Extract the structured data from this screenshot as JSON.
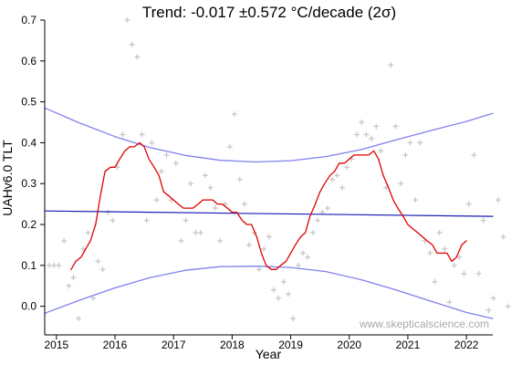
{
  "chart_data": {
    "type": "line",
    "title": "Trend: -0.017 ±0.572 °C/decade (2σ)",
    "xlabel": "Year",
    "ylabel": "UAHv6.0 TLT",
    "xlim": [
      2014.8,
      2022.45
    ],
    "ylim": [
      -0.07,
      0.7
    ],
    "xticks": [
      2015,
      2016,
      2017,
      2018,
      2019,
      2020,
      2021,
      2022
    ],
    "yticks": [
      0.0,
      0.1,
      0.2,
      0.3,
      0.4,
      0.5,
      0.6,
      0.7
    ],
    "ytick_labels": [
      "0.0",
      "0.1",
      "0.2",
      "0.3",
      "0.4",
      "0.5",
      "0.6",
      "0.7"
    ],
    "watermark": "www.skepticalscience.com",
    "colors": {
      "monthly": "#c8c8c8",
      "smoothed": "#e00000",
      "trend": "#1a1ab8",
      "confidence": "#8080ee",
      "axis": "#000000"
    },
    "series": [
      {
        "kind": "scatter",
        "marker": "plus",
        "points": [
          [
            2014.88,
            0.1
          ],
          [
            2014.96,
            0.1
          ],
          [
            2015.04,
            0.1
          ],
          [
            2015.13,
            0.16
          ],
          [
            2015.21,
            0.05
          ],
          [
            2015.29,
            0.07
          ],
          [
            2015.38,
            -0.03
          ],
          [
            2015.46,
            0.14
          ],
          [
            2015.54,
            0.18
          ],
          [
            2015.63,
            0.02
          ],
          [
            2015.71,
            0.11
          ],
          [
            2015.79,
            0.09
          ],
          [
            2015.88,
            0.23
          ],
          [
            2015.96,
            0.21
          ],
          [
            2016.04,
            0.34
          ],
          [
            2016.13,
            0.42
          ],
          [
            2016.21,
            0.7
          ],
          [
            2016.29,
            0.64
          ],
          [
            2016.38,
            0.61
          ],
          [
            2016.46,
            0.42
          ],
          [
            2016.54,
            0.21
          ],
          [
            2016.63,
            0.4
          ],
          [
            2016.71,
            0.26
          ],
          [
            2016.79,
            0.33
          ],
          [
            2016.88,
            0.37
          ],
          [
            2016.96,
            0.26
          ],
          [
            2017.04,
            0.35
          ],
          [
            2017.13,
            0.16
          ],
          [
            2017.21,
            0.21
          ],
          [
            2017.29,
            0.3
          ],
          [
            2017.38,
            0.18
          ],
          [
            2017.46,
            0.18
          ],
          [
            2017.54,
            0.32
          ],
          [
            2017.63,
            0.29
          ],
          [
            2017.71,
            0.24
          ],
          [
            2017.79,
            0.16
          ],
          [
            2017.88,
            0.25
          ],
          [
            2017.96,
            0.39
          ],
          [
            2018.04,
            0.47
          ],
          [
            2018.13,
            0.31
          ],
          [
            2018.21,
            0.25
          ],
          [
            2018.29,
            0.15
          ],
          [
            2018.38,
            0.18
          ],
          [
            2018.46,
            0.09
          ],
          [
            2018.54,
            0.14
          ],
          [
            2018.63,
            0.17
          ],
          [
            2018.71,
            0.04
          ],
          [
            2018.79,
            0.02
          ],
          [
            2018.88,
            0.06
          ],
          [
            2018.96,
            0.03
          ],
          [
            2019.04,
            -0.03
          ],
          [
            2019.13,
            0.1
          ],
          [
            2019.21,
            0.13
          ],
          [
            2019.29,
            0.12
          ],
          [
            2019.38,
            0.18
          ],
          [
            2019.46,
            0.21
          ],
          [
            2019.54,
            0.23
          ],
          [
            2019.63,
            0.24
          ],
          [
            2019.71,
            0.31
          ],
          [
            2019.79,
            0.32
          ],
          [
            2019.88,
            0.29
          ],
          [
            2019.96,
            0.34
          ],
          [
            2020.04,
            0.36
          ],
          [
            2020.13,
            0.42
          ],
          [
            2020.21,
            0.45
          ],
          [
            2020.29,
            0.42
          ],
          [
            2020.38,
            0.41
          ],
          [
            2020.46,
            0.44
          ],
          [
            2020.54,
            0.38
          ],
          [
            2020.63,
            0.29
          ],
          [
            2020.71,
            0.59
          ],
          [
            2020.79,
            0.44
          ],
          [
            2020.88,
            0.3
          ],
          [
            2020.96,
            0.37
          ],
          [
            2021.04,
            0.4
          ],
          [
            2021.13,
            0.26
          ],
          [
            2021.21,
            0.4
          ],
          [
            2021.29,
            0.16
          ],
          [
            2021.38,
            0.13
          ],
          [
            2021.46,
            0.06
          ],
          [
            2021.54,
            0.18
          ],
          [
            2021.63,
            0.14
          ],
          [
            2021.71,
            0.01
          ],
          [
            2021.79,
            0.1
          ],
          [
            2021.88,
            0.12
          ],
          [
            2021.96,
            0.08
          ],
          [
            2022.04,
            0.25
          ],
          [
            2022.13,
            0.37
          ],
          [
            2022.21,
            0.08
          ],
          [
            2022.29,
            0.21
          ],
          [
            2022.38,
            -0.01
          ],
          [
            2022.46,
            0.02
          ],
          [
            2022.54,
            0.26
          ],
          [
            2022.63,
            0.17
          ],
          [
            2022.71,
            0.0
          ]
        ]
      },
      {
        "kind": "line",
        "role": "smoothed",
        "points": [
          [
            2015.25,
            0.09
          ],
          [
            2015.33,
            0.11
          ],
          [
            2015.42,
            0.12
          ],
          [
            2015.5,
            0.14
          ],
          [
            2015.58,
            0.16
          ],
          [
            2015.67,
            0.2
          ],
          [
            2015.75,
            0.27
          ],
          [
            2015.83,
            0.33
          ],
          [
            2015.92,
            0.34
          ],
          [
            2016.0,
            0.34
          ],
          [
            2016.08,
            0.36
          ],
          [
            2016.17,
            0.38
          ],
          [
            2016.25,
            0.39
          ],
          [
            2016.33,
            0.39
          ],
          [
            2016.42,
            0.4
          ],
          [
            2016.5,
            0.39
          ],
          [
            2016.58,
            0.36
          ],
          [
            2016.67,
            0.34
          ],
          [
            2016.75,
            0.32
          ],
          [
            2016.83,
            0.28
          ],
          [
            2016.92,
            0.27
          ],
          [
            2017.0,
            0.26
          ],
          [
            2017.08,
            0.25
          ],
          [
            2017.17,
            0.24
          ],
          [
            2017.25,
            0.24
          ],
          [
            2017.33,
            0.24
          ],
          [
            2017.42,
            0.25
          ],
          [
            2017.5,
            0.26
          ],
          [
            2017.58,
            0.26
          ],
          [
            2017.67,
            0.26
          ],
          [
            2017.75,
            0.25
          ],
          [
            2017.83,
            0.25
          ],
          [
            2017.92,
            0.24
          ],
          [
            2018.0,
            0.23
          ],
          [
            2018.08,
            0.23
          ],
          [
            2018.17,
            0.21
          ],
          [
            2018.25,
            0.2
          ],
          [
            2018.33,
            0.2
          ],
          [
            2018.42,
            0.17
          ],
          [
            2018.5,
            0.13
          ],
          [
            2018.58,
            0.1
          ],
          [
            2018.67,
            0.09
          ],
          [
            2018.75,
            0.09
          ],
          [
            2018.83,
            0.1
          ],
          [
            2018.92,
            0.11
          ],
          [
            2019.0,
            0.13
          ],
          [
            2019.08,
            0.15
          ],
          [
            2019.17,
            0.17
          ],
          [
            2019.25,
            0.18
          ],
          [
            2019.33,
            0.22
          ],
          [
            2019.42,
            0.25
          ],
          [
            2019.5,
            0.28
          ],
          [
            2019.58,
            0.3
          ],
          [
            2019.67,
            0.32
          ],
          [
            2019.75,
            0.33
          ],
          [
            2019.83,
            0.35
          ],
          [
            2019.92,
            0.35
          ],
          [
            2020.0,
            0.36
          ],
          [
            2020.08,
            0.37
          ],
          [
            2020.17,
            0.37
          ],
          [
            2020.25,
            0.37
          ],
          [
            2020.33,
            0.37
          ],
          [
            2020.42,
            0.38
          ],
          [
            2020.5,
            0.36
          ],
          [
            2020.58,
            0.32
          ],
          [
            2020.67,
            0.29
          ],
          [
            2020.75,
            0.26
          ],
          [
            2020.83,
            0.24
          ],
          [
            2020.92,
            0.22
          ],
          [
            2021.0,
            0.2
          ],
          [
            2021.08,
            0.19
          ],
          [
            2021.17,
            0.18
          ],
          [
            2021.25,
            0.17
          ],
          [
            2021.33,
            0.16
          ],
          [
            2021.42,
            0.15
          ],
          [
            2021.5,
            0.13
          ],
          [
            2021.58,
            0.13
          ],
          [
            2021.67,
            0.13
          ],
          [
            2021.75,
            0.11
          ],
          [
            2021.83,
            0.12
          ],
          [
            2021.92,
            0.15
          ],
          [
            2022.0,
            0.16
          ]
        ]
      },
      {
        "kind": "line",
        "role": "trend",
        "points": [
          [
            2014.8,
            0.233
          ],
          [
            2022.45,
            0.22
          ]
        ]
      },
      {
        "kind": "line",
        "role": "upper-confidence",
        "points": [
          [
            2014.8,
            0.485
          ],
          [
            2015.4,
            0.448
          ],
          [
            2016.0,
            0.415
          ],
          [
            2016.6,
            0.388
          ],
          [
            2017.2,
            0.369
          ],
          [
            2017.8,
            0.357
          ],
          [
            2018.4,
            0.353
          ],
          [
            2019.0,
            0.356
          ],
          [
            2019.6,
            0.366
          ],
          [
            2020.2,
            0.383
          ],
          [
            2020.8,
            0.407
          ],
          [
            2021.4,
            0.43
          ],
          [
            2022.0,
            0.452
          ],
          [
            2022.45,
            0.472
          ]
        ]
      },
      {
        "kind": "line",
        "role": "lower-confidence",
        "points": [
          [
            2014.8,
            -0.017
          ],
          [
            2015.4,
            0.015
          ],
          [
            2016.0,
            0.045
          ],
          [
            2016.6,
            0.07
          ],
          [
            2017.2,
            0.088
          ],
          [
            2017.8,
            0.097
          ],
          [
            2018.4,
            0.098
          ],
          [
            2019.0,
            0.095
          ],
          [
            2019.6,
            0.085
          ],
          [
            2020.2,
            0.065
          ],
          [
            2020.8,
            0.04
          ],
          [
            2021.4,
            0.012
          ],
          [
            2022.0,
            -0.015
          ],
          [
            2022.45,
            -0.03
          ]
        ]
      }
    ]
  }
}
